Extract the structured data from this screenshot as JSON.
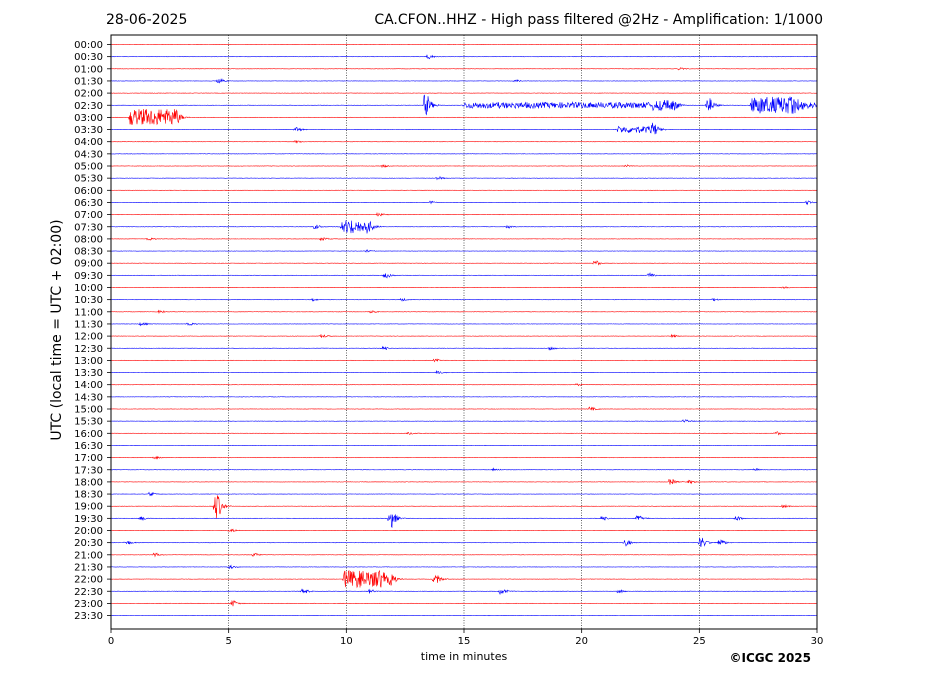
{
  "header": {
    "date": "28-06-2025",
    "station_title": "CA.CFON..HHZ - High pass filtered @2Hz - Amplification: 1/1000"
  },
  "footer": {
    "copyright": "©ICGC 2025"
  },
  "chart_data": {
    "type": "line",
    "title": "CA.CFON..HHZ - High pass filtered @2Hz - Amplification: 1/1000",
    "date": "28-06-2025",
    "xlabel": "time in minutes",
    "ylabel": "UTC (local time = UTC + 02:00)",
    "xlim": [
      0,
      30
    ],
    "x_ticks": [
      "0",
      "5",
      "10",
      "15",
      "20",
      "25",
      "30"
    ],
    "grid": "vertical dotted lines at every 5 minutes",
    "line_colors": [
      "#ff0000",
      "#0000ff"
    ],
    "traces": [
      {
        "label": "00:00",
        "events": []
      },
      {
        "label": "00:30",
        "events": [
          {
            "t": 13.4,
            "amp": 0.25
          }
        ]
      },
      {
        "label": "01:00",
        "events": [
          {
            "t": 24.1,
            "amp": 0.12
          }
        ]
      },
      {
        "label": "01:30",
        "events": [
          {
            "t": 4.5,
            "amp": 0.3
          },
          {
            "t": 17.1,
            "amp": 0.15
          }
        ]
      },
      {
        "label": "02:00",
        "events": []
      },
      {
        "label": "02:30",
        "events": [
          {
            "t": 13.3,
            "amp": 1.2
          },
          {
            "t": 15,
            "amp": 0.35,
            "dur": 8
          },
          {
            "t": 23,
            "amp": 0.6,
            "dur": 1
          },
          {
            "t": 25.3,
            "amp": 1.0
          },
          {
            "t": 27.2,
            "amp": 1.0,
            "dur": 2
          },
          {
            "t": 29,
            "amp": 0.35,
            "dur": 1
          }
        ]
      },
      {
        "label": "03:00",
        "events": [
          {
            "t": 0.8,
            "amp": 1.0,
            "dur": 2
          }
        ]
      },
      {
        "label": "03:30",
        "events": [
          {
            "t": 7.8,
            "amp": 0.25
          },
          {
            "t": 21.5,
            "amp": 0.4,
            "dur": 1.5
          },
          {
            "t": 23,
            "amp": 0.6
          }
        ]
      },
      {
        "label": "04:00",
        "events": [
          {
            "t": 7.8,
            "amp": 0.15
          }
        ]
      },
      {
        "label": "04:30",
        "events": []
      },
      {
        "label": "05:00",
        "events": [
          {
            "t": 11.5,
            "amp": 0.15
          },
          {
            "t": 21.8,
            "amp": 0.12
          }
        ]
      },
      {
        "label": "05:30",
        "events": [
          {
            "t": 13.8,
            "amp": 0.2
          }
        ]
      },
      {
        "label": "06:00",
        "events": []
      },
      {
        "label": "06:30",
        "events": [
          {
            "t": 13.5,
            "amp": 0.15
          },
          {
            "t": 29.5,
            "amp": 0.2
          }
        ]
      },
      {
        "label": "07:00",
        "events": [
          {
            "t": 11.3,
            "amp": 0.2
          }
        ]
      },
      {
        "label": "07:30",
        "events": [
          {
            "t": 8.6,
            "amp": 0.25
          },
          {
            "t": 9.8,
            "amp": 0.8,
            "dur": 1.2
          },
          {
            "t": 16.8,
            "amp": 0.15
          }
        ]
      },
      {
        "label": "08:00",
        "events": [
          {
            "t": 1.5,
            "amp": 0.2
          },
          {
            "t": 8.9,
            "amp": 0.2
          }
        ]
      },
      {
        "label": "08:30",
        "events": [
          {
            "t": 10.8,
            "amp": 0.15
          }
        ]
      },
      {
        "label": "09:00",
        "events": [
          {
            "t": 20.5,
            "amp": 0.3
          }
        ]
      },
      {
        "label": "09:30",
        "events": [
          {
            "t": 11.6,
            "amp": 0.3
          },
          {
            "t": 22.8,
            "amp": 0.25
          }
        ]
      },
      {
        "label": "10:00",
        "events": [
          {
            "t": 28.5,
            "amp": 0.15
          }
        ]
      },
      {
        "label": "10:30",
        "events": [
          {
            "t": 8.5,
            "amp": 0.15
          },
          {
            "t": 12.3,
            "amp": 0.15
          },
          {
            "t": 25.5,
            "amp": 0.15
          }
        ]
      },
      {
        "label": "11:00",
        "events": [
          {
            "t": 2.0,
            "amp": 0.15
          },
          {
            "t": 11,
            "amp": 0.15
          }
        ]
      },
      {
        "label": "11:30",
        "events": [
          {
            "t": 1.2,
            "amp": 0.2
          },
          {
            "t": 3.2,
            "amp": 0.25
          }
        ]
      },
      {
        "label": "12:00",
        "events": [
          {
            "t": 8.9,
            "amp": 0.2
          },
          {
            "t": 23.8,
            "amp": 0.15
          }
        ]
      },
      {
        "label": "12:30",
        "events": [
          {
            "t": 11.5,
            "amp": 0.2
          },
          {
            "t": 18.6,
            "amp": 0.2
          }
        ]
      },
      {
        "label": "13:00",
        "events": [
          {
            "t": 13.7,
            "amp": 0.15
          }
        ]
      },
      {
        "label": "13:30",
        "events": [
          {
            "t": 13.8,
            "amp": 0.2
          }
        ]
      },
      {
        "label": "14:00",
        "events": [
          {
            "t": 19.7,
            "amp": 0.12
          }
        ]
      },
      {
        "label": "14:30",
        "events": []
      },
      {
        "label": "15:00",
        "events": [
          {
            "t": 20.3,
            "amp": 0.25
          }
        ]
      },
      {
        "label": "15:30",
        "events": [
          {
            "t": 24.3,
            "amp": 0.2
          }
        ]
      },
      {
        "label": "16:00",
        "events": [
          {
            "t": 12.6,
            "amp": 0.2
          },
          {
            "t": 28.2,
            "amp": 0.2
          }
        ]
      },
      {
        "label": "16:30",
        "events": []
      },
      {
        "label": "17:00",
        "events": [
          {
            "t": 1.8,
            "amp": 0.15
          }
        ]
      },
      {
        "label": "17:30",
        "events": [
          {
            "t": 16.2,
            "amp": 0.15
          },
          {
            "t": 27.3,
            "amp": 0.15
          }
        ]
      },
      {
        "label": "18:00",
        "events": [
          {
            "t": 23.7,
            "amp": 0.35
          },
          {
            "t": 24.5,
            "amp": 0.2
          }
        ]
      },
      {
        "label": "18:30",
        "events": [
          {
            "t": 1.6,
            "amp": 0.2
          }
        ]
      },
      {
        "label": "19:00",
        "events": [
          {
            "t": 4.4,
            "amp": 1.5
          },
          {
            "t": 28.5,
            "amp": 0.15
          }
        ]
      },
      {
        "label": "19:30",
        "events": [
          {
            "t": 1.2,
            "amp": 0.25
          },
          {
            "t": 11.8,
            "amp": 1.1
          },
          {
            "t": 20.8,
            "amp": 0.25
          },
          {
            "t": 22.3,
            "amp": 0.4
          },
          {
            "t": 26.5,
            "amp": 0.25
          }
        ]
      },
      {
        "label": "20:00",
        "events": [
          {
            "t": 5.0,
            "amp": 0.2
          }
        ]
      },
      {
        "label": "20:30",
        "events": [
          {
            "t": 0.6,
            "amp": 0.25
          },
          {
            "t": 21.8,
            "amp": 0.4
          },
          {
            "t": 25,
            "amp": 0.6
          },
          {
            "t": 25.8,
            "amp": 0.4
          }
        ]
      },
      {
        "label": "21:00",
        "events": [
          {
            "t": 1.8,
            "amp": 0.2
          },
          {
            "t": 6,
            "amp": 0.2
          }
        ]
      },
      {
        "label": "21:30",
        "events": [
          {
            "t": 5.0,
            "amp": 0.2
          }
        ]
      },
      {
        "label": "22:00",
        "events": [
          {
            "t": 9.9,
            "amp": 1.0,
            "dur": 2
          },
          {
            "t": 13.7,
            "amp": 0.6
          }
        ]
      },
      {
        "label": "22:30",
        "events": [
          {
            "t": 8.1,
            "amp": 0.3
          },
          {
            "t": 10.9,
            "amp": 0.25
          },
          {
            "t": 16.5,
            "amp": 0.35
          },
          {
            "t": 21.5,
            "amp": 0.2
          }
        ]
      },
      {
        "label": "23:00",
        "events": [
          {
            "t": 5.1,
            "amp": 0.35
          }
        ]
      },
      {
        "label": "23:30",
        "events": []
      }
    ]
  }
}
